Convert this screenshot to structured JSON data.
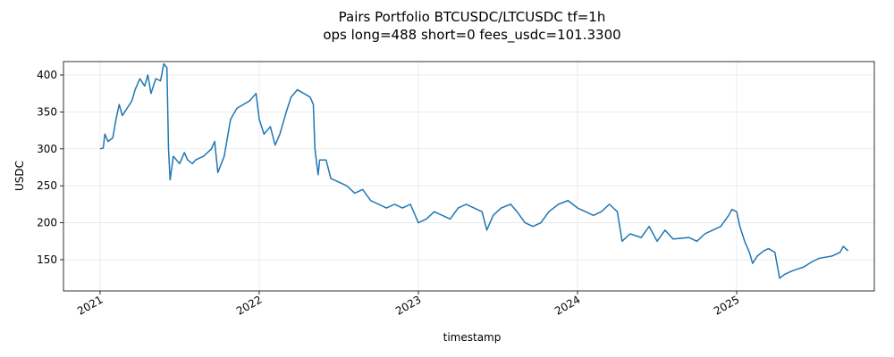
{
  "chart_data": {
    "type": "line",
    "title": "Pairs Portfolio BTCUSDC/LTCUSDC tf=1h",
    "subtitle": "ops long=488 short=0 fees_usdc=101.3300",
    "x_label": "timestamp",
    "y_label": "USDC",
    "color": "#1f77b4",
    "grid": true,
    "xlim": [
      2020.77,
      2025.865
    ],
    "xticks": [
      2021,
      2022,
      2023,
      2024,
      2025
    ],
    "ylim": [
      107.7,
      418.1
    ],
    "yticks": [
      150,
      200,
      250,
      300,
      350,
      400
    ],
    "x": [
      2021.0,
      2021.02,
      2021.03,
      2021.05,
      2021.08,
      2021.1,
      2021.12,
      2021.14,
      2021.17,
      2021.2,
      2021.22,
      2021.25,
      2021.28,
      2021.3,
      2021.32,
      2021.35,
      2021.38,
      2021.4,
      2021.42,
      2021.43,
      2021.44,
      2021.46,
      2021.5,
      2021.53,
      2021.55,
      2021.58,
      2021.6,
      2021.65,
      2021.7,
      2021.72,
      2021.74,
      2021.78,
      2021.82,
      2021.86,
      2021.9,
      2021.94,
      2021.98,
      2022.0,
      2022.03,
      2022.07,
      2022.1,
      2022.13,
      2022.17,
      2022.2,
      2022.24,
      2022.28,
      2022.32,
      2022.34,
      2022.35,
      2022.37,
      2022.38,
      2022.42,
      2022.45,
      2022.5,
      2022.55,
      2022.6,
      2022.65,
      2022.7,
      2022.75,
      2022.8,
      2022.85,
      2022.9,
      2022.95,
      2023.0,
      2023.05,
      2023.1,
      2023.15,
      2023.2,
      2023.25,
      2023.3,
      2023.35,
      2023.4,
      2023.43,
      2023.47,
      2023.52,
      2023.58,
      2023.62,
      2023.67,
      2023.72,
      2023.77,
      2023.82,
      2023.88,
      2023.94,
      2024.0,
      2024.05,
      2024.1,
      2024.15,
      2024.2,
      2024.25,
      2024.28,
      2024.33,
      2024.4,
      2024.45,
      2024.5,
      2024.55,
      2024.6,
      2024.7,
      2024.75,
      2024.8,
      2024.85,
      2024.9,
      2024.95,
      2024.97,
      2025.0,
      2025.02,
      2025.05,
      2025.08,
      2025.1,
      2025.13,
      2025.17,
      2025.2,
      2025.24,
      2025.27,
      2025.3,
      2025.35,
      2025.42,
      2025.48,
      2025.52,
      2025.6,
      2025.65,
      2025.67,
      2025.7
    ],
    "values": [
      300,
      301,
      320,
      310,
      315,
      340,
      360,
      345,
      355,
      365,
      380,
      395,
      385,
      400,
      375,
      395,
      392,
      415,
      410,
      300,
      258,
      290,
      280,
      295,
      285,
      280,
      285,
      290,
      300,
      310,
      268,
      290,
      340,
      355,
      360,
      365,
      375,
      340,
      320,
      330,
      305,
      320,
      350,
      370,
      380,
      375,
      370,
      360,
      300,
      265,
      285,
      285,
      260,
      255,
      250,
      240,
      245,
      230,
      225,
      220,
      225,
      220,
      225,
      200,
      205,
      215,
      210,
      205,
      220,
      225,
      220,
      215,
      190,
      210,
      220,
      225,
      215,
      200,
      195,
      200,
      215,
      225,
      230,
      220,
      215,
      210,
      215,
      225,
      215,
      175,
      185,
      180,
      195,
      175,
      190,
      178,
      180,
      175,
      185,
      190,
      195,
      210,
      218,
      215,
      195,
      175,
      160,
      145,
      155,
      162,
      165,
      160,
      125,
      130,
      135,
      140,
      148,
      152,
      155,
      160,
      168,
      162
    ]
  }
}
